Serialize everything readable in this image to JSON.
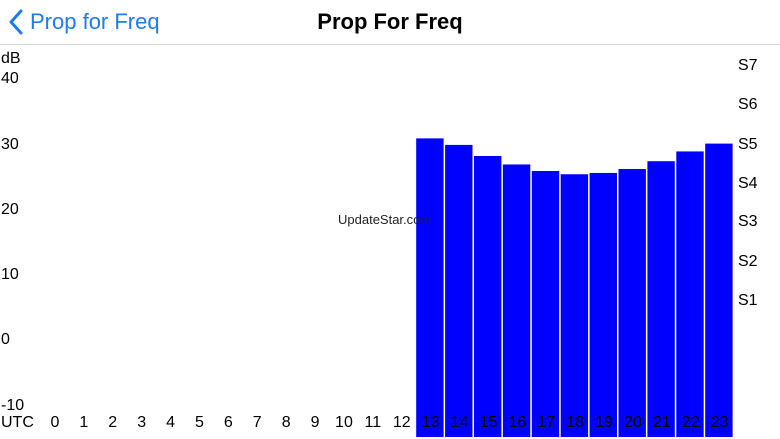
{
  "nav": {
    "back_label": "Prop for Freq",
    "title": "Prop For Freq",
    "back_icon": "chevron-left-icon",
    "accent": "#1a7cf0"
  },
  "watermark": "UpdateStar.com",
  "chart_data": {
    "type": "bar",
    "ylabel": "dB",
    "xlabel": "UTC",
    "ylim": [
      -10,
      40
    ],
    "y_ticks": [
      "40",
      "30",
      "20",
      "10",
      "0",
      "-10"
    ],
    "s_ticks": [
      "S7",
      "S6",
      "S5",
      "S4",
      "S3",
      "S2",
      "S1"
    ],
    "categories": [
      "0",
      "1",
      "2",
      "3",
      "4",
      "5",
      "6",
      "7",
      "8",
      "9",
      "10",
      "11",
      "12",
      "13",
      "14",
      "15",
      "16",
      "17",
      "18",
      "19",
      "20",
      "21",
      "22",
      "23"
    ],
    "values": [
      null,
      null,
      null,
      null,
      null,
      null,
      null,
      null,
      null,
      null,
      null,
      null,
      null,
      35.8,
      34.8,
      33.1,
      31.8,
      30.8,
      30.3,
      30.5,
      31.1,
      32.3,
      33.8,
      35.0
    ],
    "bar_color": "#0000ff",
    "grid": false
  }
}
